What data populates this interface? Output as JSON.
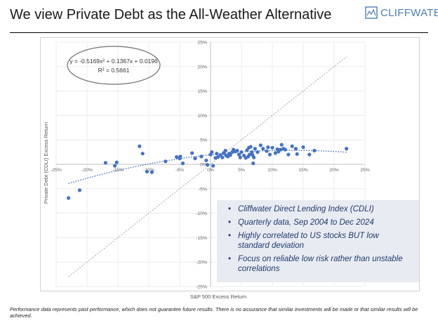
{
  "header": {
    "title": "We view Private Debt as the All-Weather Alternative",
    "logo_text": "CLIFFWATER"
  },
  "callout": {
    "bullets": [
      "Cliffwater Direct Lending Index (CDLI)",
      "Quarterly data, Sep 2004 to Dec 2024",
      "Highly correlated to US stocks BUT low standard deviation",
      "Focus on reliable low risk rather than unstable correlations"
    ]
  },
  "footnote": "Performance data represents past performance, which does not guarantee future results. There is no assurance that similar investments will be made or that similar results will be achieved.",
  "colors": {
    "points": "#4472c4",
    "trend": "#4472c4",
    "diagonal": "#a6a6a6",
    "logo": "#4d7fb8",
    "callout_bg": "#e9ebf2",
    "callout_text": "#1f3a6e"
  },
  "chart_data": {
    "type": "scatter",
    "xlabel": "S&P 500 Excess Return",
    "ylabel": "Private Debt (CDLI) Excess Return",
    "xlim": [
      -25,
      25
    ],
    "ylim": [
      -25,
      25
    ],
    "x_ticks": [
      "-25%",
      "-20%",
      "-15%",
      "-10%",
      "-5%",
      "0%",
      "5%",
      "10%",
      "15%",
      "20%",
      "25%"
    ],
    "y_ticks": [
      "25%",
      "20%",
      "15%",
      "10%",
      "5%",
      "0%",
      "-5%",
      "-10%",
      "-15%",
      "-20%",
      "-25%"
    ],
    "trendline": {
      "equation": "y = -0.5169x² + 0.1367x + 0.0196",
      "r_squared": "R² = 0.5661",
      "a": -0.5169,
      "b": 0.1367,
      "c": 0.0196
    },
    "reference_line": {
      "x_range": [
        -23,
        22
      ],
      "slope": 1,
      "intercept": 0
    },
    "points": [
      [
        -23.0,
        -6.9
      ],
      [
        -21.2,
        -5.3
      ],
      [
        -17.0,
        0.3
      ],
      [
        -15.2,
        0.4
      ],
      [
        -15.5,
        -0.3
      ],
      [
        -11.5,
        3.7
      ],
      [
        -11.0,
        2.2
      ],
      [
        -10.3,
        -1.5
      ],
      [
        -9.5,
        -1.6
      ],
      [
        -7.3,
        0.6
      ],
      [
        -5.5,
        1.5
      ],
      [
        -5.0,
        1.2
      ],
      [
        -4.9,
        1.6
      ],
      [
        -4.5,
        0.2
      ],
      [
        -3.0,
        2.3
      ],
      [
        -2.5,
        1.2
      ],
      [
        -1.5,
        1.6
      ],
      [
        -0.7,
        0.8
      ],
      [
        -0.5,
        -0.1
      ],
      [
        0.0,
        2.0
      ],
      [
        0.2,
        2.5
      ],
      [
        0.4,
        -0.3
      ],
      [
        0.8,
        1.3
      ],
      [
        1.0,
        2.2
      ],
      [
        1.2,
        1.5
      ],
      [
        1.6,
        1.9
      ],
      [
        1.9,
        1.4
      ],
      [
        2.1,
        2.3
      ],
      [
        2.4,
        2.8
      ],
      [
        2.5,
        1.8
      ],
      [
        2.8,
        1.6
      ],
      [
        3.0,
        2.2
      ],
      [
        3.2,
        1.9
      ],
      [
        3.5,
        2.5
      ],
      [
        3.7,
        3.0
      ],
      [
        4.0,
        2.6
      ],
      [
        4.3,
        2.8
      ],
      [
        4.6,
        2.0
      ],
      [
        4.8,
        1.4
      ],
      [
        5.0,
        2.5
      ],
      [
        5.4,
        1.8
      ],
      [
        5.7,
        1.3
      ],
      [
        5.9,
        2.9
      ],
      [
        6.1,
        1.6
      ],
      [
        6.2,
        3.4
      ],
      [
        6.3,
        2.0
      ],
      [
        6.5,
        3.6
      ],
      [
        6.7,
        2.5
      ],
      [
        6.8,
        1.9
      ],
      [
        6.9,
        0.2
      ],
      [
        7.0,
        1.4
      ],
      [
        7.2,
        3.2
      ],
      [
        7.6,
        2.5
      ],
      [
        8.1,
        3.9
      ],
      [
        8.5,
        3.2
      ],
      [
        9.1,
        2.7
      ],
      [
        9.3,
        3.5
      ],
      [
        9.6,
        2.0
      ],
      [
        10.0,
        3.4
      ],
      [
        10.5,
        2.3
      ],
      [
        10.8,
        3.1
      ],
      [
        11.0,
        2.6
      ],
      [
        11.3,
        3.0
      ],
      [
        11.5,
        4.0
      ],
      [
        11.8,
        3.2
      ],
      [
        12.1,
        3.0
      ],
      [
        12.6,
        2.0
      ],
      [
        13.2,
        3.7
      ],
      [
        13.8,
        3.2
      ],
      [
        14.0,
        2.1
      ],
      [
        15.0,
        3.5
      ],
      [
        16.0,
        2.0
      ],
      [
        16.8,
        2.8
      ],
      [
        22.0,
        3.2
      ]
    ]
  }
}
